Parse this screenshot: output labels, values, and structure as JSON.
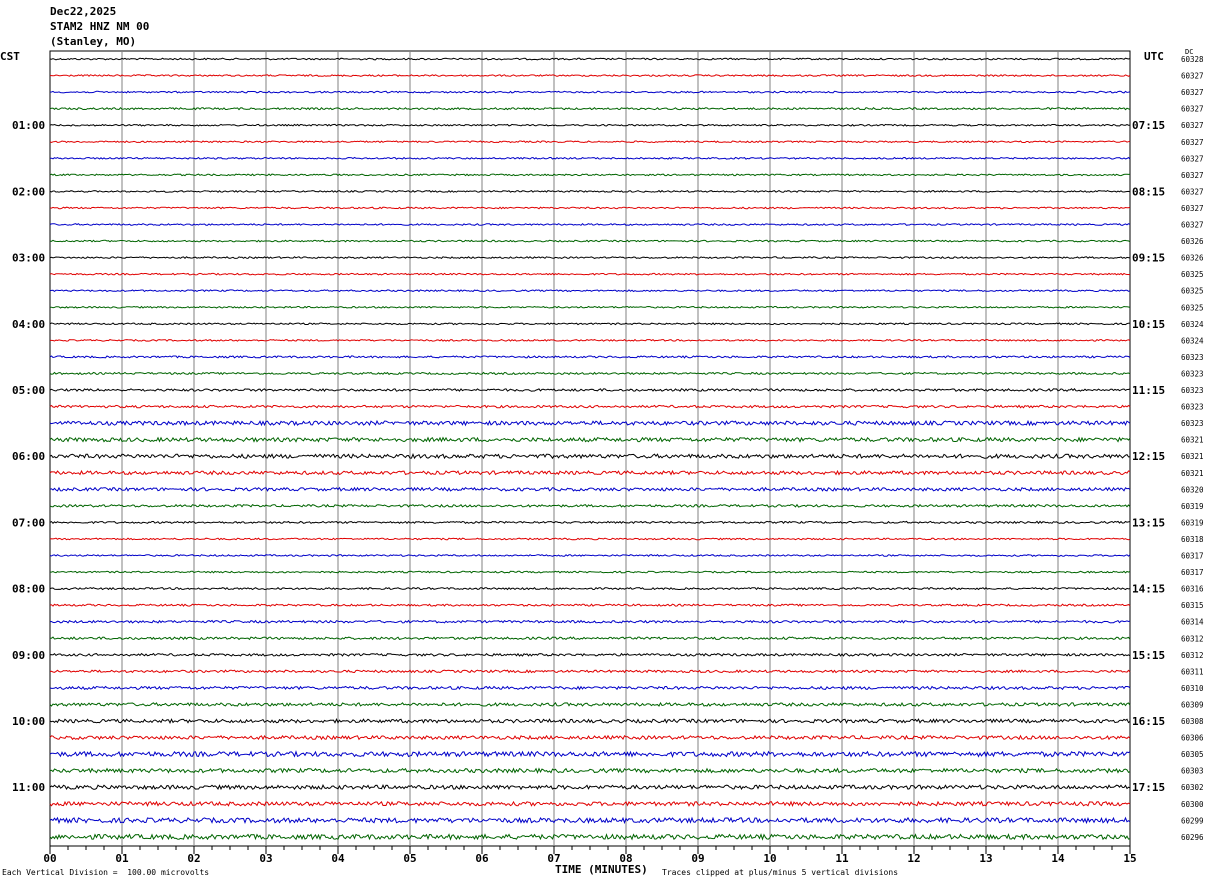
{
  "header": {
    "date": "Dec22,2025",
    "station": "STAM2 HNZ NM 00",
    "location": "(Stanley, MO)"
  },
  "left_timezone": "CST",
  "right_timezone": "UTC",
  "dc_label": "DC",
  "footer": {
    "note_left": "Each Vertical Division =  100.00 microvolts",
    "x_title": "TIME (MINUTES)",
    "note_right": "Traces clipped at plus/minus 5 vertical divisions"
  },
  "chart_data": {
    "type": "line",
    "title": "",
    "xlabel": "TIME (MINUTES)",
    "xlim": [
      0,
      15
    ],
    "x_ticks": [
      "00",
      "01",
      "02",
      "03",
      "04",
      "05",
      "06",
      "07",
      "08",
      "09",
      "10",
      "11",
      "12",
      "13",
      "14",
      "15"
    ],
    "left_hour_labels": [
      "01:00",
      "02:00",
      "03:00",
      "04:00",
      "05:00",
      "06:00",
      "07:00",
      "08:00",
      "09:00",
      "10:00",
      "11:00"
    ],
    "right_hour_labels": [
      "07:15",
      "08:15",
      "09:15",
      "10:15",
      "11:15",
      "12:15",
      "13:15",
      "14:15",
      "15:15",
      "16:15",
      "17:15"
    ],
    "trace_colors": [
      "#000000",
      "#e00000",
      "#0000c8",
      "#006400"
    ],
    "traces_per_hour": 4,
    "dc_values": [
      "60328",
      "60327",
      "60327",
      "60327",
      "60327",
      "60327",
      "60327",
      "60327",
      "60327",
      "60327",
      "60327",
      "60326",
      "60326",
      "60325",
      "60325",
      "60325",
      "60324",
      "60324",
      "60323",
      "60323",
      "60323",
      "60323",
      "60323",
      "60321",
      "60321",
      "60321",
      "60320",
      "60319",
      "60319",
      "60318",
      "60317",
      "60317",
      "60316",
      "60315",
      "60314",
      "60312",
      "60312",
      "60311",
      "60310",
      "60309",
      "60308",
      "60306",
      "60305",
      "60303",
      "60302",
      "60300",
      "60299",
      "60296"
    ],
    "trace_amplitude": [
      1,
      1,
      1,
      1.2,
      1,
      1,
      1,
      1,
      1,
      1,
      1,
      1,
      1,
      1,
      1,
      1,
      1,
      1,
      1.2,
      1.2,
      1.5,
      1.5,
      2.5,
      2.5,
      2.5,
      2.2,
      2,
      1.5,
      1.2,
      1,
      1,
      1,
      1.2,
      1.2,
      1.5,
      1.5,
      1.5,
      1.5,
      1.8,
      2,
      2.2,
      2.2,
      3,
      2.5,
      2.5,
      2.5,
      3,
      3
    ]
  }
}
